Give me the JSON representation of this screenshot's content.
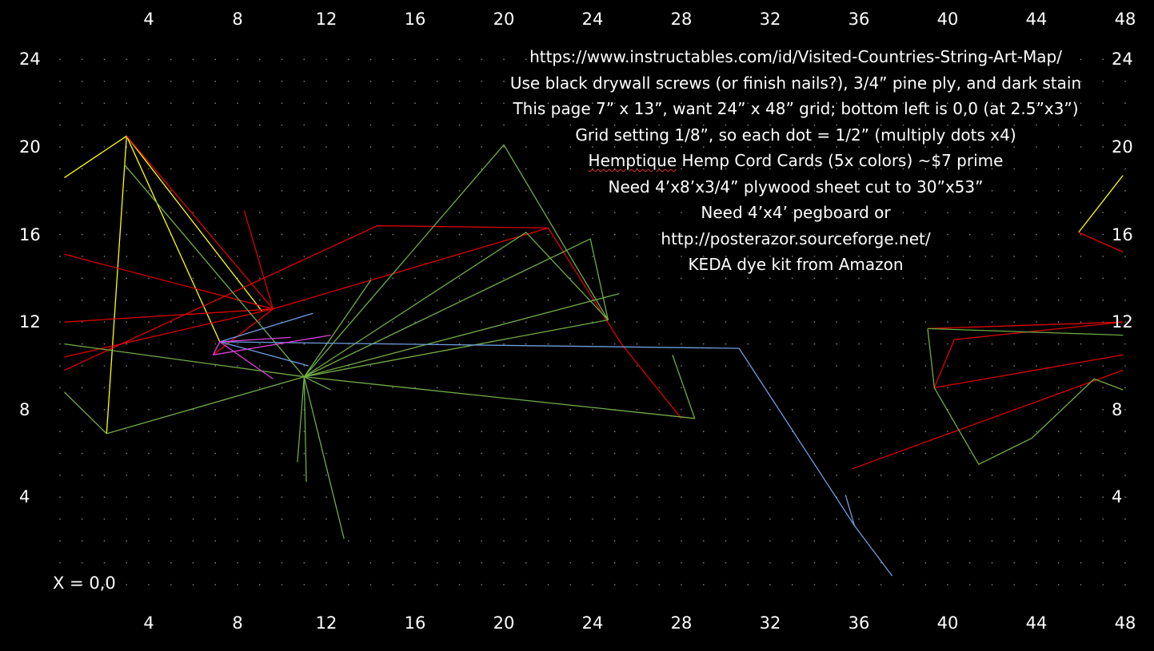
{
  "grid": {
    "cols": 48,
    "rows": 24,
    "dot_color": "#8a8a8a",
    "background": "#000000"
  },
  "labels": {
    "x_top": [
      {
        "text": "4",
        "x": 4
      },
      {
        "text": "8",
        "x": 8
      },
      {
        "text": "12",
        "x": 12
      },
      {
        "text": "16",
        "x": 16
      },
      {
        "text": "20",
        "x": 20
      },
      {
        "text": "24",
        "x": 24
      },
      {
        "text": "28",
        "x": 28
      },
      {
        "text": "32",
        "x": 32
      },
      {
        "text": "36",
        "x": 36
      },
      {
        "text": "40",
        "x": 40
      },
      {
        "text": "44",
        "x": 44
      },
      {
        "text": "48",
        "x": 48
      }
    ],
    "x_bottom": [
      {
        "text": "4",
        "x": 4
      },
      {
        "text": "8",
        "x": 8
      },
      {
        "text": "12",
        "x": 12
      },
      {
        "text": "16",
        "x": 16
      },
      {
        "text": "20",
        "x": 20
      },
      {
        "text": "24",
        "x": 24
      },
      {
        "text": "28",
        "x": 28
      },
      {
        "text": "32",
        "x": 32
      },
      {
        "text": "36",
        "x": 36
      },
      {
        "text": "40",
        "x": 40
      },
      {
        "text": "44",
        "x": 44
      },
      {
        "text": "48",
        "x": 48
      }
    ],
    "y_left": [
      {
        "text": "24",
        "y": 24
      },
      {
        "text": "20",
        "y": 20
      },
      {
        "text": "16",
        "y": 16
      },
      {
        "text": "12",
        "y": 12
      },
      {
        "text": "8",
        "y": 8
      },
      {
        "text": "4",
        "y": 4
      }
    ],
    "y_right": [
      {
        "text": "24",
        "y": 24
      },
      {
        "text": "20",
        "y": 20
      },
      {
        "text": "16",
        "y": 16
      },
      {
        "text": "12",
        "y": 12
      },
      {
        "text": "8",
        "y": 8
      },
      {
        "text": "4",
        "y": 4
      }
    ],
    "origin": "X = 0,0"
  },
  "notes": [
    "https://www.instructables.com/id/Visited-Countries-String-Art-Map/",
    "Use black drywall screws (or finish nails?), 3/4” pine ply, and dark stain",
    "This page 7” x 13”, want 24” x 48” grid; bottom left is 0,0 (at 2.5”x3”)",
    "Grid setting 1/8”, so each dot = 1/2” (multiply dots x4)",
    {
      "underlined": "Hemptique",
      "rest": " Hemp Cord Cards (5x colors) ~$7 prime"
    },
    "Need 4’x8’x3/4” plywood sheet cut to 30”x53”",
    "Need 4’x4’ pegboard or",
    "http://posterazor.sourceforge.net/",
    "KEDA dye kit from Amazon"
  ],
  "colors": {
    "yellow": "#ffff00",
    "red": "#e00000",
    "green": "#70ad47",
    "blue": "#6f9ee0",
    "magenta": "#e040e0",
    "text": "#ffffff"
  },
  "strings": [
    {
      "color": "yellow",
      "points": [
        [
          0.2,
          18.6
        ],
        [
          3,
          20.5
        ],
        [
          9.1,
          12.5
        ]
      ]
    },
    {
      "color": "yellow",
      "points": [
        [
          3,
          20.5
        ],
        [
          2.1,
          6.9
        ]
      ]
    },
    {
      "color": "yellow",
      "points": [
        [
          3,
          20.5
        ],
        [
          7.2,
          11.1
        ]
      ]
    },
    {
      "color": "yellow",
      "points": [
        [
          47.9,
          18.7
        ],
        [
          45.9,
          16.1
        ]
      ]
    },
    {
      "color": "red",
      "points": [
        [
          3,
          20.5
        ],
        [
          9.6,
          12.6
        ]
      ]
    },
    {
      "color": "red",
      "points": [
        [
          0.2,
          15.1
        ],
        [
          9.6,
          12.6
        ]
      ]
    },
    {
      "color": "red",
      "points": [
        [
          8.3,
          17.1
        ],
        [
          9.6,
          12.6
        ]
      ]
    },
    {
      "color": "red",
      "points": [
        [
          0.2,
          12.0
        ],
        [
          9.6,
          12.6
        ]
      ]
    },
    {
      "color": "red",
      "points": [
        [
          0.2,
          10.4
        ],
        [
          9.6,
          12.6
        ]
      ]
    },
    {
      "color": "red",
      "points": [
        [
          0.2,
          9.8
        ],
        [
          14.3,
          16.4
        ],
        [
          22.0,
          16.3
        ]
      ]
    },
    {
      "color": "red",
      "points": [
        [
          9.6,
          12.6
        ],
        [
          22.0,
          16.3
        ],
        [
          25.3,
          11.0
        ],
        [
          28.0,
          7.6
        ]
      ]
    },
    {
      "color": "red",
      "points": [
        [
          6.9,
          10.5
        ],
        [
          9.6,
          12.6
        ]
      ]
    },
    {
      "color": "red",
      "points": [
        [
          47.9,
          15.2
        ],
        [
          45.9,
          16.1
        ]
      ]
    },
    {
      "color": "red",
      "points": [
        [
          39.1,
          11.7
        ],
        [
          47.9,
          12.0
        ]
      ]
    },
    {
      "color": "red",
      "points": [
        [
          40.3,
          11.2
        ],
        [
          47.9,
          12.0
        ]
      ]
    },
    {
      "color": "red",
      "points": [
        [
          40.3,
          11.2
        ],
        [
          39.4,
          9.0
        ],
        [
          47.9,
          10.5
        ]
      ]
    },
    {
      "color": "red",
      "points": [
        [
          35.7,
          5.3
        ],
        [
          47.9,
          9.8
        ]
      ]
    },
    {
      "color": "green",
      "points": [
        [
          2.9,
          19.2
        ],
        [
          11,
          9.5
        ],
        [
          14,
          13.9
        ],
        [
          11,
          9.5
        ]
      ]
    },
    {
      "color": "green",
      "points": [
        [
          0.2,
          11.0
        ],
        [
          11,
          9.5
        ],
        [
          2.1,
          6.9
        ],
        [
          0.2,
          8.8
        ]
      ]
    },
    {
      "color": "green",
      "points": [
        [
          11,
          9.5
        ],
        [
          20,
          20.1
        ],
        [
          24.7,
          12.1
        ],
        [
          11,
          9.5
        ]
      ]
    },
    {
      "color": "green",
      "points": [
        [
          11,
          9.5
        ],
        [
          21,
          16.1
        ],
        [
          24.7,
          12.1
        ]
      ]
    },
    {
      "color": "green",
      "points": [
        [
          11,
          9.5
        ],
        [
          23.9,
          15.8
        ],
        [
          24.7,
          12.1
        ]
      ]
    },
    {
      "color": "green",
      "points": [
        [
          11,
          9.5
        ],
        [
          25.2,
          13.3
        ]
      ]
    },
    {
      "color": "green",
      "points": [
        [
          11,
          9.5
        ],
        [
          28.6,
          7.6
        ],
        [
          27.6,
          10.5
        ]
      ]
    },
    {
      "color": "green",
      "points": [
        [
          11,
          9.5
        ],
        [
          10.7,
          5.6
        ]
      ]
    },
    {
      "color": "green",
      "points": [
        [
          11,
          9.5
        ],
        [
          11.1,
          4.7
        ]
      ]
    },
    {
      "color": "green",
      "points": [
        [
          11,
          9.5
        ],
        [
          12.8,
          2.1
        ]
      ]
    },
    {
      "color": "green",
      "points": [
        [
          11,
          9.5
        ],
        [
          12.2,
          8.9
        ]
      ]
    },
    {
      "color": "green",
      "points": [
        [
          39.1,
          11.7
        ],
        [
          39.4,
          9.0
        ],
        [
          41.4,
          5.5
        ],
        [
          43.8,
          6.7
        ],
        [
          46.6,
          9.4
        ],
        [
          47.9,
          8.9
        ]
      ]
    },
    {
      "color": "green",
      "points": [
        [
          39.1,
          11.7
        ],
        [
          47.9,
          11.4
        ]
      ]
    },
    {
      "color": "blue",
      "points": [
        [
          7.2,
          11.1
        ],
        [
          11.4,
          12.4
        ]
      ]
    },
    {
      "color": "blue",
      "points": [
        [
          7.2,
          11.1
        ],
        [
          30.6,
          10.8
        ],
        [
          35.8,
          2.7
        ],
        [
          37.5,
          0.4
        ]
      ]
    },
    {
      "color": "blue",
      "points": [
        [
          7.2,
          11.1
        ],
        [
          11.2,
          10.0
        ]
      ]
    },
    {
      "color": "blue",
      "points": [
        [
          35.4,
          4.1
        ],
        [
          35.8,
          2.7
        ]
      ]
    },
    {
      "color": "magenta",
      "points": [
        [
          6.9,
          10.5
        ],
        [
          7.2,
          11.1
        ],
        [
          9.6,
          9.4
        ]
      ]
    },
    {
      "color": "magenta",
      "points": [
        [
          6.9,
          10.5
        ],
        [
          12.2,
          11.4
        ]
      ]
    },
    {
      "color": "magenta",
      "points": [
        [
          7.2,
          11.1
        ],
        [
          10.4,
          11.3
        ]
      ]
    }
  ]
}
